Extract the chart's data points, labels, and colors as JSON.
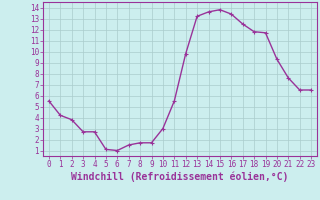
{
  "xlabel": "Windchill (Refroidissement éolien,°C)",
  "x_values": [
    0,
    1,
    2,
    3,
    4,
    5,
    6,
    7,
    8,
    9,
    10,
    11,
    12,
    13,
    14,
    15,
    16,
    17,
    18,
    19,
    20,
    21,
    22,
    23
  ],
  "y_values": [
    5.5,
    4.2,
    3.8,
    2.7,
    2.7,
    1.1,
    1.0,
    1.5,
    1.7,
    1.7,
    3.0,
    5.5,
    9.8,
    13.2,
    13.6,
    13.8,
    13.4,
    12.5,
    11.8,
    11.7,
    9.3,
    7.6,
    6.5,
    6.5
  ],
  "line_color": "#993399",
  "marker": "+",
  "marker_size": 3,
  "bg_color": "#cceeee",
  "grid_color": "#aacccc",
  "axis_color": "#993399",
  "tick_color": "#993399",
  "xlim": [
    -0.5,
    23.5
  ],
  "ylim": [
    0.5,
    14.5
  ],
  "yticks": [
    1,
    2,
    3,
    4,
    5,
    6,
    7,
    8,
    9,
    10,
    11,
    12,
    13,
    14
  ],
  "xticks": [
    0,
    1,
    2,
    3,
    4,
    5,
    6,
    7,
    8,
    9,
    10,
    11,
    12,
    13,
    14,
    15,
    16,
    17,
    18,
    19,
    20,
    21,
    22,
    23
  ],
  "xlabel_fontsize": 7,
  "tick_fontsize": 5.5,
  "line_width": 1.0
}
